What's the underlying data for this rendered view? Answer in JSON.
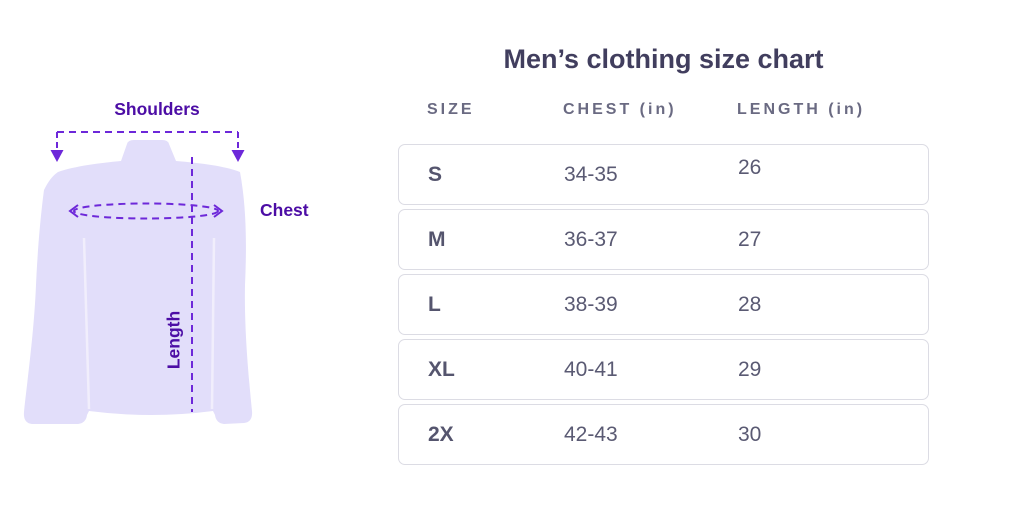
{
  "title": "Men’s clothing size chart",
  "diagram": {
    "labels": {
      "shoulders": "Shoulders",
      "chest": "Chest",
      "length": "Length"
    },
    "colors": {
      "shirt_fill": "#e2defa",
      "dashed_line": "#6d28d9",
      "label_text": "#4c0da5"
    }
  },
  "size_table": {
    "columns": [
      "SIZE",
      "CHEST (in)",
      "LENGTH (in)"
    ],
    "rows": [
      {
        "size": "S",
        "chest": "34-35",
        "length": "26"
      },
      {
        "size": "M",
        "chest": "36-37",
        "length": "27"
      },
      {
        "size": "L",
        "chest": "38-39",
        "length": "28"
      },
      {
        "size": "XL",
        "chest": "40-41",
        "length": "29"
      },
      {
        "size": "2X",
        "chest": "42-43",
        "length": "30"
      }
    ]
  },
  "chart_data": {
    "type": "table",
    "title": "Men’s clothing size chart",
    "columns": [
      "SIZE",
      "CHEST (in)",
      "LENGTH (in)"
    ],
    "rows": [
      [
        "S",
        "34-35",
        "26"
      ],
      [
        "M",
        "36-37",
        "27"
      ],
      [
        "L",
        "38-39",
        "28"
      ],
      [
        "XL",
        "40-41",
        "29"
      ],
      [
        "2X",
        "42-43",
        "30"
      ]
    ]
  }
}
